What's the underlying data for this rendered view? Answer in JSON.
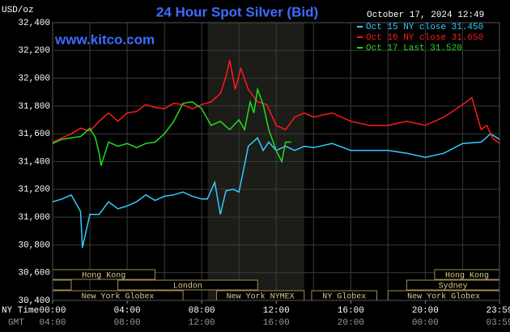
{
  "chart_data": {
    "type": "line",
    "title": "24 Hour Spot Silver (Bid)",
    "subtitle": "www.kitco.com",
    "timestamp": "October 17, 2024 12:49",
    "y_unit": "USD/oz",
    "x_row_labels": [
      "NY Time",
      "GMT"
    ],
    "xlim": [
      0,
      23.98
    ],
    "xticks": [
      {
        "value": 0,
        "label": "00:00"
      },
      {
        "value": 4,
        "label": "04:00"
      },
      {
        "value": 8,
        "label": "08:00"
      },
      {
        "value": 12,
        "label": "12:00"
      },
      {
        "value": 16,
        "label": "16:00"
      },
      {
        "value": 20,
        "label": "20:00"
      },
      {
        "value": 23.98,
        "label": "23:59"
      }
    ],
    "gmt_labels": [
      "04:00",
      "08:00",
      "12:00",
      "16:00",
      "20:00",
      "00:00",
      "03:59"
    ],
    "xgrid": [
      2,
      4,
      6,
      8,
      10,
      12,
      14,
      16,
      18,
      20,
      22
    ],
    "ylim": [
      30.4,
      32.4
    ],
    "yticks": [
      {
        "value": 30.4,
        "label": "30,400"
      },
      {
        "value": 30.6,
        "label": "30,600"
      },
      {
        "value": 30.8,
        "label": "30,800"
      },
      {
        "value": 31.0,
        "label": "31,000"
      },
      {
        "value": 31.2,
        "label": "31,200"
      },
      {
        "value": 31.4,
        "label": "31,400"
      },
      {
        "value": 31.6,
        "label": "31,600"
      },
      {
        "value": 31.8,
        "label": "31,800"
      },
      {
        "value": 32.0,
        "label": "32,000"
      },
      {
        "value": 32.2,
        "label": "32,200"
      },
      {
        "value": 32.4,
        "label": "32,400"
      }
    ],
    "grid": true,
    "highlight": [
      8.33,
      13.5
    ],
    "sessions": [
      {
        "name": "Hong Kong",
        "ranges": [
          [
            0,
            5.5
          ],
          [
            20.5,
            24
          ]
        ]
      },
      {
        "name": "London",
        "ranges": [
          [
            3.5,
            11
          ]
        ]
      },
      {
        "name": "Sydney",
        "ranges": [
          [
            0,
            1
          ],
          [
            19,
            24
          ]
        ]
      },
      {
        "name": "New York Globex",
        "ranges": [
          [
            0,
            7
          ],
          [
            18,
            24
          ]
        ]
      },
      {
        "name": "New York NYMEX",
        "ranges": [
          [
            8.8,
            13.5
          ]
        ]
      },
      {
        "name": "NY Globex",
        "ranges": [
          [
            13.9,
            17.4
          ]
        ]
      }
    ],
    "series": [
      {
        "name": "Oct 15 NY close 31.450",
        "color": "#33ccff",
        "x": [
          0,
          0.5,
          1,
          1.5,
          1.6,
          2,
          2.5,
          3,
          3.5,
          4,
          4.5,
          5,
          5.5,
          6,
          6.5,
          7,
          7.5,
          8,
          8.3,
          8.7,
          9,
          9.3,
          9.7,
          10,
          10.2,
          10.5,
          11,
          11.3,
          11.6,
          12,
          12.5,
          13,
          13.5,
          14,
          15,
          16,
          17,
          18,
          19,
          20,
          21,
          22,
          23,
          23.5,
          23.98
        ],
        "values": [
          31.11,
          31.13,
          31.16,
          31.04,
          30.78,
          31.02,
          31.02,
          31.11,
          31.06,
          31.08,
          31.11,
          31.16,
          31.12,
          31.15,
          31.16,
          31.18,
          31.15,
          31.13,
          31.13,
          31.25,
          31.02,
          31.19,
          31.2,
          31.18,
          31.31,
          31.51,
          31.57,
          31.48,
          31.54,
          31.48,
          31.51,
          31.48,
          31.51,
          31.5,
          31.53,
          31.48,
          31.48,
          31.48,
          31.46,
          31.43,
          31.46,
          31.53,
          31.54,
          31.6,
          31.56
        ]
      },
      {
        "name": "Oct 16 NY close 31.650",
        "color": "#ff1a1a",
        "x": [
          0,
          0.5,
          1,
          1.5,
          2,
          2.5,
          3,
          3.5,
          4,
          4.5,
          5,
          5.5,
          6,
          6.5,
          7,
          7.5,
          8,
          8.5,
          9,
          9.3,
          9.5,
          9.8,
          10.1,
          10.5,
          11,
          11.5,
          12,
          12.5,
          13,
          13.5,
          14,
          15,
          16,
          17,
          18,
          19,
          20,
          21,
          22,
          22.5,
          22.8,
          23,
          23.3,
          23.6,
          23.98
        ],
        "values": [
          31.54,
          31.57,
          31.6,
          31.64,
          31.62,
          31.69,
          31.75,
          31.69,
          31.75,
          31.76,
          31.81,
          31.79,
          31.78,
          31.82,
          31.81,
          31.78,
          31.81,
          31.83,
          31.89,
          32.01,
          32.13,
          31.92,
          32.07,
          31.92,
          31.83,
          31.81,
          31.66,
          31.63,
          31.72,
          31.75,
          31.72,
          31.75,
          31.69,
          31.66,
          31.66,
          31.69,
          31.66,
          31.72,
          31.81,
          31.86,
          31.72,
          31.63,
          31.66,
          31.57,
          31.53
        ]
      },
      {
        "name": "Oct 17 Last 31.520",
        "color": "#22dd22",
        "x": [
          0,
          0.5,
          1,
          1.5,
          2,
          2.3,
          2.5,
          2.6,
          3,
          3.5,
          4,
          4.5,
          5,
          5.5,
          6,
          6.5,
          7,
          7.5,
          8,
          8.5,
          9,
          9.5,
          10,
          10.3,
          10.6,
          10.8,
          11,
          11.3,
          11.6,
          12,
          12.3,
          12.5,
          12.8
        ],
        "values": [
          31.53,
          31.56,
          31.57,
          31.58,
          31.64,
          31.57,
          31.46,
          31.37,
          31.54,
          31.51,
          31.53,
          31.5,
          31.53,
          31.54,
          31.6,
          31.69,
          31.82,
          31.83,
          31.78,
          31.66,
          31.69,
          31.63,
          31.7,
          31.63,
          31.83,
          31.75,
          31.92,
          31.81,
          31.63,
          31.48,
          31.4,
          31.54,
          31.54
        ]
      }
    ]
  }
}
